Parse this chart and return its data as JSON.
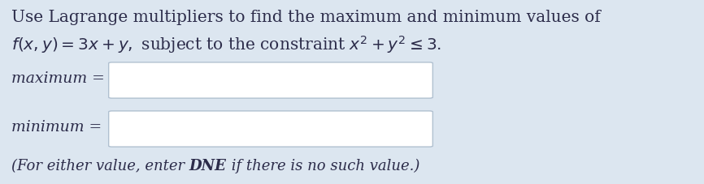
{
  "background_color": "#dce6f0",
  "text_color": "#2c2c4a",
  "line1": "Use Lagrange multipliers to find the maximum and minimum values of",
  "label_maximum": "maximum =",
  "label_minimum": "minimum =",
  "box_fill": "#ffffff",
  "box_edge": "#b0c0d0",
  "font_size_main": 14.5,
  "font_size_labels": 13.5,
  "font_size_footnote": 13.0,
  "line2_latex": "$f(x, y) = 3x + y,$ subject to the constraint $x^2 + y^2 \\leq 3.$",
  "footnote_part1": "(For either value, enter ",
  "footnote_bold": "DNE",
  "footnote_part2": " if there is no such value.)"
}
